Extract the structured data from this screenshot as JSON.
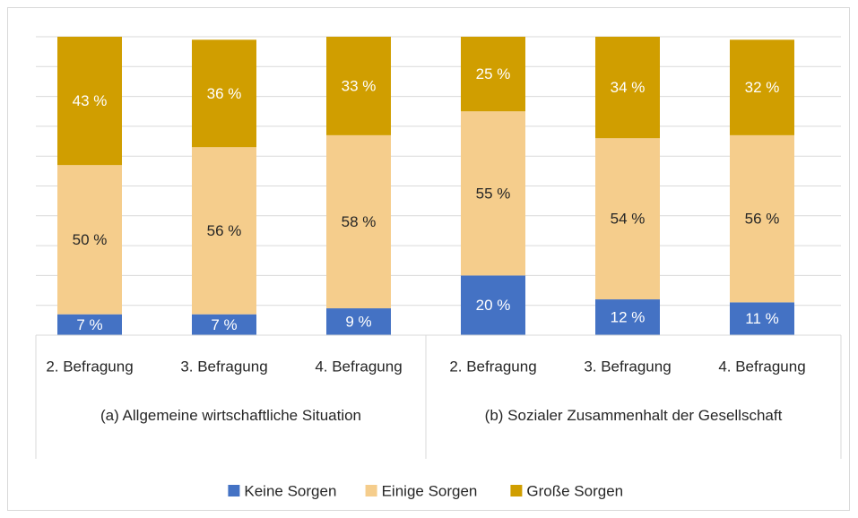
{
  "chart_data": {
    "type": "stacked_bar",
    "categories": [
      "2. Befragung",
      "3. Befragung",
      "4. Befragung",
      "2. Befragung",
      "3. Befragung",
      "4. Befragung"
    ],
    "groups": [
      {
        "label": "(a) Allgemeine wirtschaftliche Situation",
        "size": 3
      },
      {
        "label": "(b) Sozialer Zusammenhalt der Gesellschaft",
        "size": 3
      }
    ],
    "series": [
      {
        "name": "Keine Sorgen",
        "color": "#4472c4",
        "label_color": "#ffffff",
        "values": [
          7,
          7,
          9,
          20,
          12,
          11
        ],
        "value_labels": [
          "7 %",
          "7 %",
          "9 %",
          "20 %",
          "12 %",
          "11 %"
        ]
      },
      {
        "name": "Einige Sorgen",
        "color": "#f5cd8c",
        "label_color": "#262626",
        "values": [
          50,
          56,
          58,
          55,
          54,
          56
        ],
        "value_labels": [
          "50 %",
          "56 %",
          "58 %",
          "55 %",
          "54 %",
          "56 %"
        ]
      },
      {
        "name": "Große Sorgen",
        "color": "#d09e00",
        "label_color": "#ffffff",
        "values": [
          43,
          36,
          33,
          25,
          34,
          32
        ],
        "value_labels": [
          "43 %",
          "36 %",
          "33 %",
          "25 %",
          "34 %",
          "32 %"
        ]
      }
    ],
    "ylim": [
      0,
      100
    ],
    "yticks": [
      0,
      10,
      20,
      30,
      40,
      50,
      60,
      70,
      80,
      90,
      100
    ],
    "grid": true,
    "legend": "bottom"
  }
}
